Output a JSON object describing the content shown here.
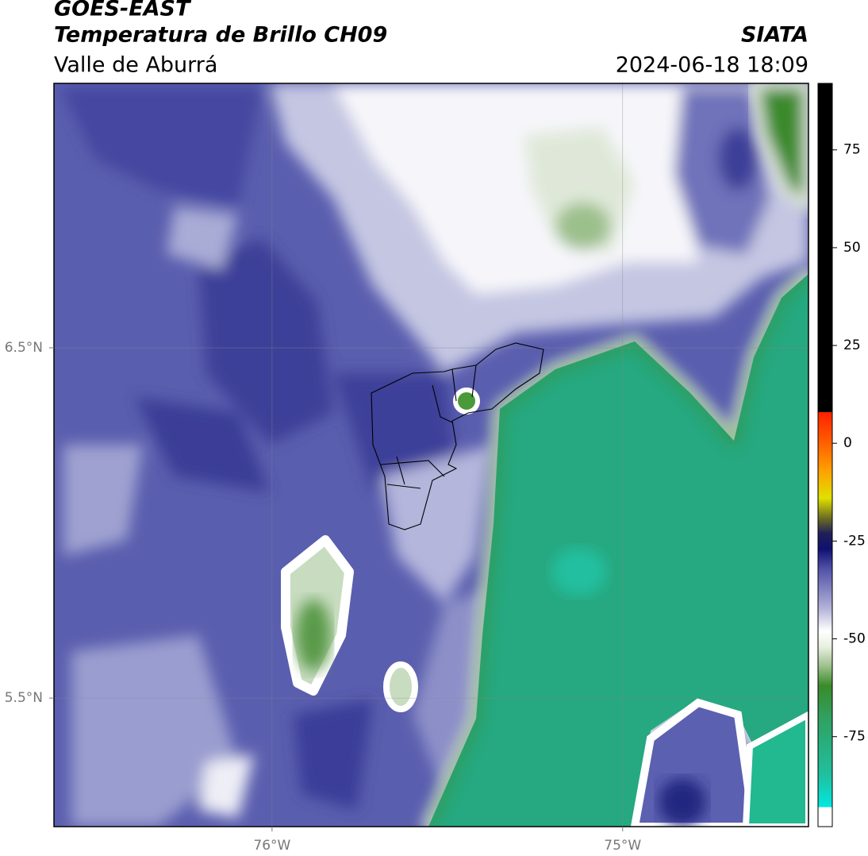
{
  "header": {
    "source": "GOES-EAST",
    "product": "Temperatura de Brillo CH09",
    "region": "Valle de Aburrá",
    "agency": "SIATA",
    "datetime": "2024-06-18 18:09"
  },
  "map": {
    "lonlim": [
      -76.622,
      -74.47
    ],
    "latlim": [
      5.133,
      7.255
    ],
    "lonticks": [
      {
        "value": -76,
        "label": "76°W"
      },
      {
        "value": -75,
        "label": "75°W"
      }
    ],
    "latticks": [
      {
        "value": 6.5,
        "label": "6.5°N"
      },
      {
        "value": 5.5,
        "label": "5.5°N"
      }
    ],
    "grid": true
  },
  "colorbar": {
    "range": [
      -98,
      92
    ],
    "ticks": [
      75,
      50,
      25,
      0,
      -25,
      -50,
      -75
    ],
    "stops": [
      {
        "value": -98,
        "color": "#ffffff"
      },
      {
        "value": -93,
        "color": "#ffffff"
      },
      {
        "value": -93,
        "color": "#00e8e0"
      },
      {
        "value": -85,
        "color": "#20c0a0"
      },
      {
        "value": -70,
        "color": "#30a060"
      },
      {
        "value": -62,
        "color": "#3a8a2a"
      },
      {
        "value": -57,
        "color": "#9cc08c"
      },
      {
        "value": -52,
        "color": "#e8f0e0"
      },
      {
        "value": -48,
        "color": "#ffffff"
      },
      {
        "value": -42,
        "color": "#b0b0d8"
      },
      {
        "value": -32,
        "color": "#5050a8"
      },
      {
        "value": -27,
        "color": "#101070"
      },
      {
        "value": -23,
        "color": "#202058"
      },
      {
        "value": -19,
        "color": "#707020"
      },
      {
        "value": -14,
        "color": "#e0e000"
      },
      {
        "value": -7,
        "color": "#ffa000"
      },
      {
        "value": 0,
        "color": "#ff6000"
      },
      {
        "value": 8,
        "color": "#ff2000"
      },
      {
        "value": 8,
        "color": "#000000"
      },
      {
        "value": 92,
        "color": "#000000"
      }
    ]
  }
}
